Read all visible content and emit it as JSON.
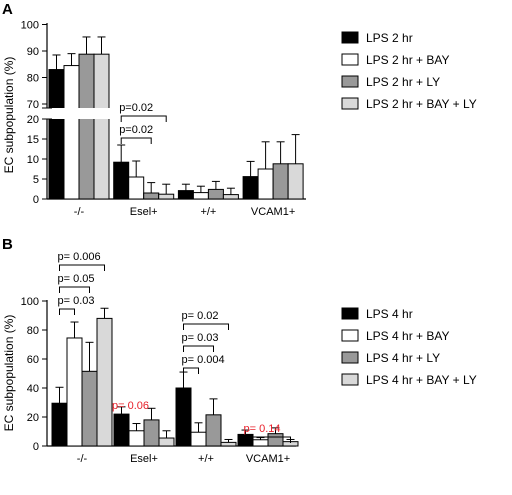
{
  "chart_data": [
    {
      "panel_label": "A",
      "type": "bar",
      "ylabel": "EC subpopulation (%)",
      "axis_break": {
        "lower": [
          0,
          20
        ],
        "upper": [
          70,
          100
        ]
      },
      "ticks_lower": [
        "0",
        "5",
        "10",
        "15",
        "20"
      ],
      "ticks_upper": [
        "70",
        "80",
        "90",
        "100"
      ],
      "categories": [
        "-/-",
        "Esel+",
        "+/+",
        "VCAM1+"
      ],
      "colors": [
        "#000000",
        "#ffffff",
        "#999999",
        "#d9d9d9"
      ],
      "series": [
        {
          "name": "LPS 2 hr",
          "values": [
            83,
            9.2,
            2.1,
            5.6
          ],
          "errors": [
            5.5,
            4.3,
            1.6,
            3.8
          ]
        },
        {
          "name": "LPS 2 hr + BAY",
          "values": [
            84.5,
            5.5,
            1.6,
            7.5
          ],
          "errors": [
            4.5,
            4.0,
            1.6,
            6.8
          ]
        },
        {
          "name": "LPS 2 hr + LY",
          "values": [
            88.8,
            1.5,
            2.4,
            8.8
          ],
          "errors": [
            6.5,
            2.6,
            2.0,
            5.5
          ]
        },
        {
          "name": "LPS 2 hr + BAY + LY",
          "values": [
            88.8,
            1.2,
            1.1,
            8.8
          ],
          "errors": [
            6.5,
            2.5,
            1.6,
            7.3
          ]
        }
      ],
      "annotations": [
        {
          "text": "p=0.02",
          "color": "#000000",
          "category": 1,
          "from": 0,
          "to": 3
        },
        {
          "text": "p=0.02",
          "color": "#000000",
          "category": 1,
          "from": 0,
          "to": 2
        }
      ]
    },
    {
      "panel_label": "B",
      "type": "bar",
      "ylabel": "EC subpopulation (%)",
      "ylim": [
        0,
        100
      ],
      "ticks": [
        "0",
        "20",
        "40",
        "60",
        "80",
        "100"
      ],
      "categories": [
        "-/-",
        "Esel+",
        "+/+",
        "VCAM1+"
      ],
      "colors": [
        "#000000",
        "#ffffff",
        "#999999",
        "#d9d9d9"
      ],
      "series": [
        {
          "name": "LPS 4 hr",
          "values": [
            29.5,
            22,
            40,
            8
          ],
          "errors": [
            11,
            5,
            11,
            3
          ]
        },
        {
          "name": "LPS 4 hr + BAY",
          "values": [
            74.5,
            10.5,
            9.5,
            4.3
          ],
          "errors": [
            11,
            5,
            6.5,
            1.5
          ]
        },
        {
          "name": "LPS 4 hr + LY",
          "values": [
            51.5,
            18,
            21.5,
            8.5
          ],
          "errors": [
            20,
            8,
            11,
            4
          ]
        },
        {
          "name": "LPS 4 hr + BAY + LY",
          "values": [
            88,
            5.5,
            2.5,
            3
          ],
          "errors": [
            7,
            5,
            2,
            1.5
          ]
        }
      ],
      "annotations": [
        {
          "text": "p= 0.006",
          "color": "#000000",
          "category": 0,
          "from": 0,
          "to": 3
        },
        {
          "text": "p= 0.05",
          "color": "#000000",
          "category": 0,
          "from": 0,
          "to": 2
        },
        {
          "text": "p= 0.03",
          "color": "#000000",
          "category": 0,
          "from": 0,
          "to": 1
        },
        {
          "text": "p= 0.06",
          "color": "#e8202a",
          "category": 1,
          "from": null,
          "to": null
        },
        {
          "text": "p= 0.02",
          "color": "#000000",
          "category": 2,
          "from": 0,
          "to": 3
        },
        {
          "text": "p= 0.03",
          "color": "#000000",
          "category": 2,
          "from": 0,
          "to": 2
        },
        {
          "text": "p= 0.004",
          "color": "#000000",
          "category": 2,
          "from": 0,
          "to": 1
        },
        {
          "text": "p= 0.14",
          "color": "#e8202a",
          "category": 3,
          "from": 0,
          "to": 3
        }
      ]
    }
  ]
}
